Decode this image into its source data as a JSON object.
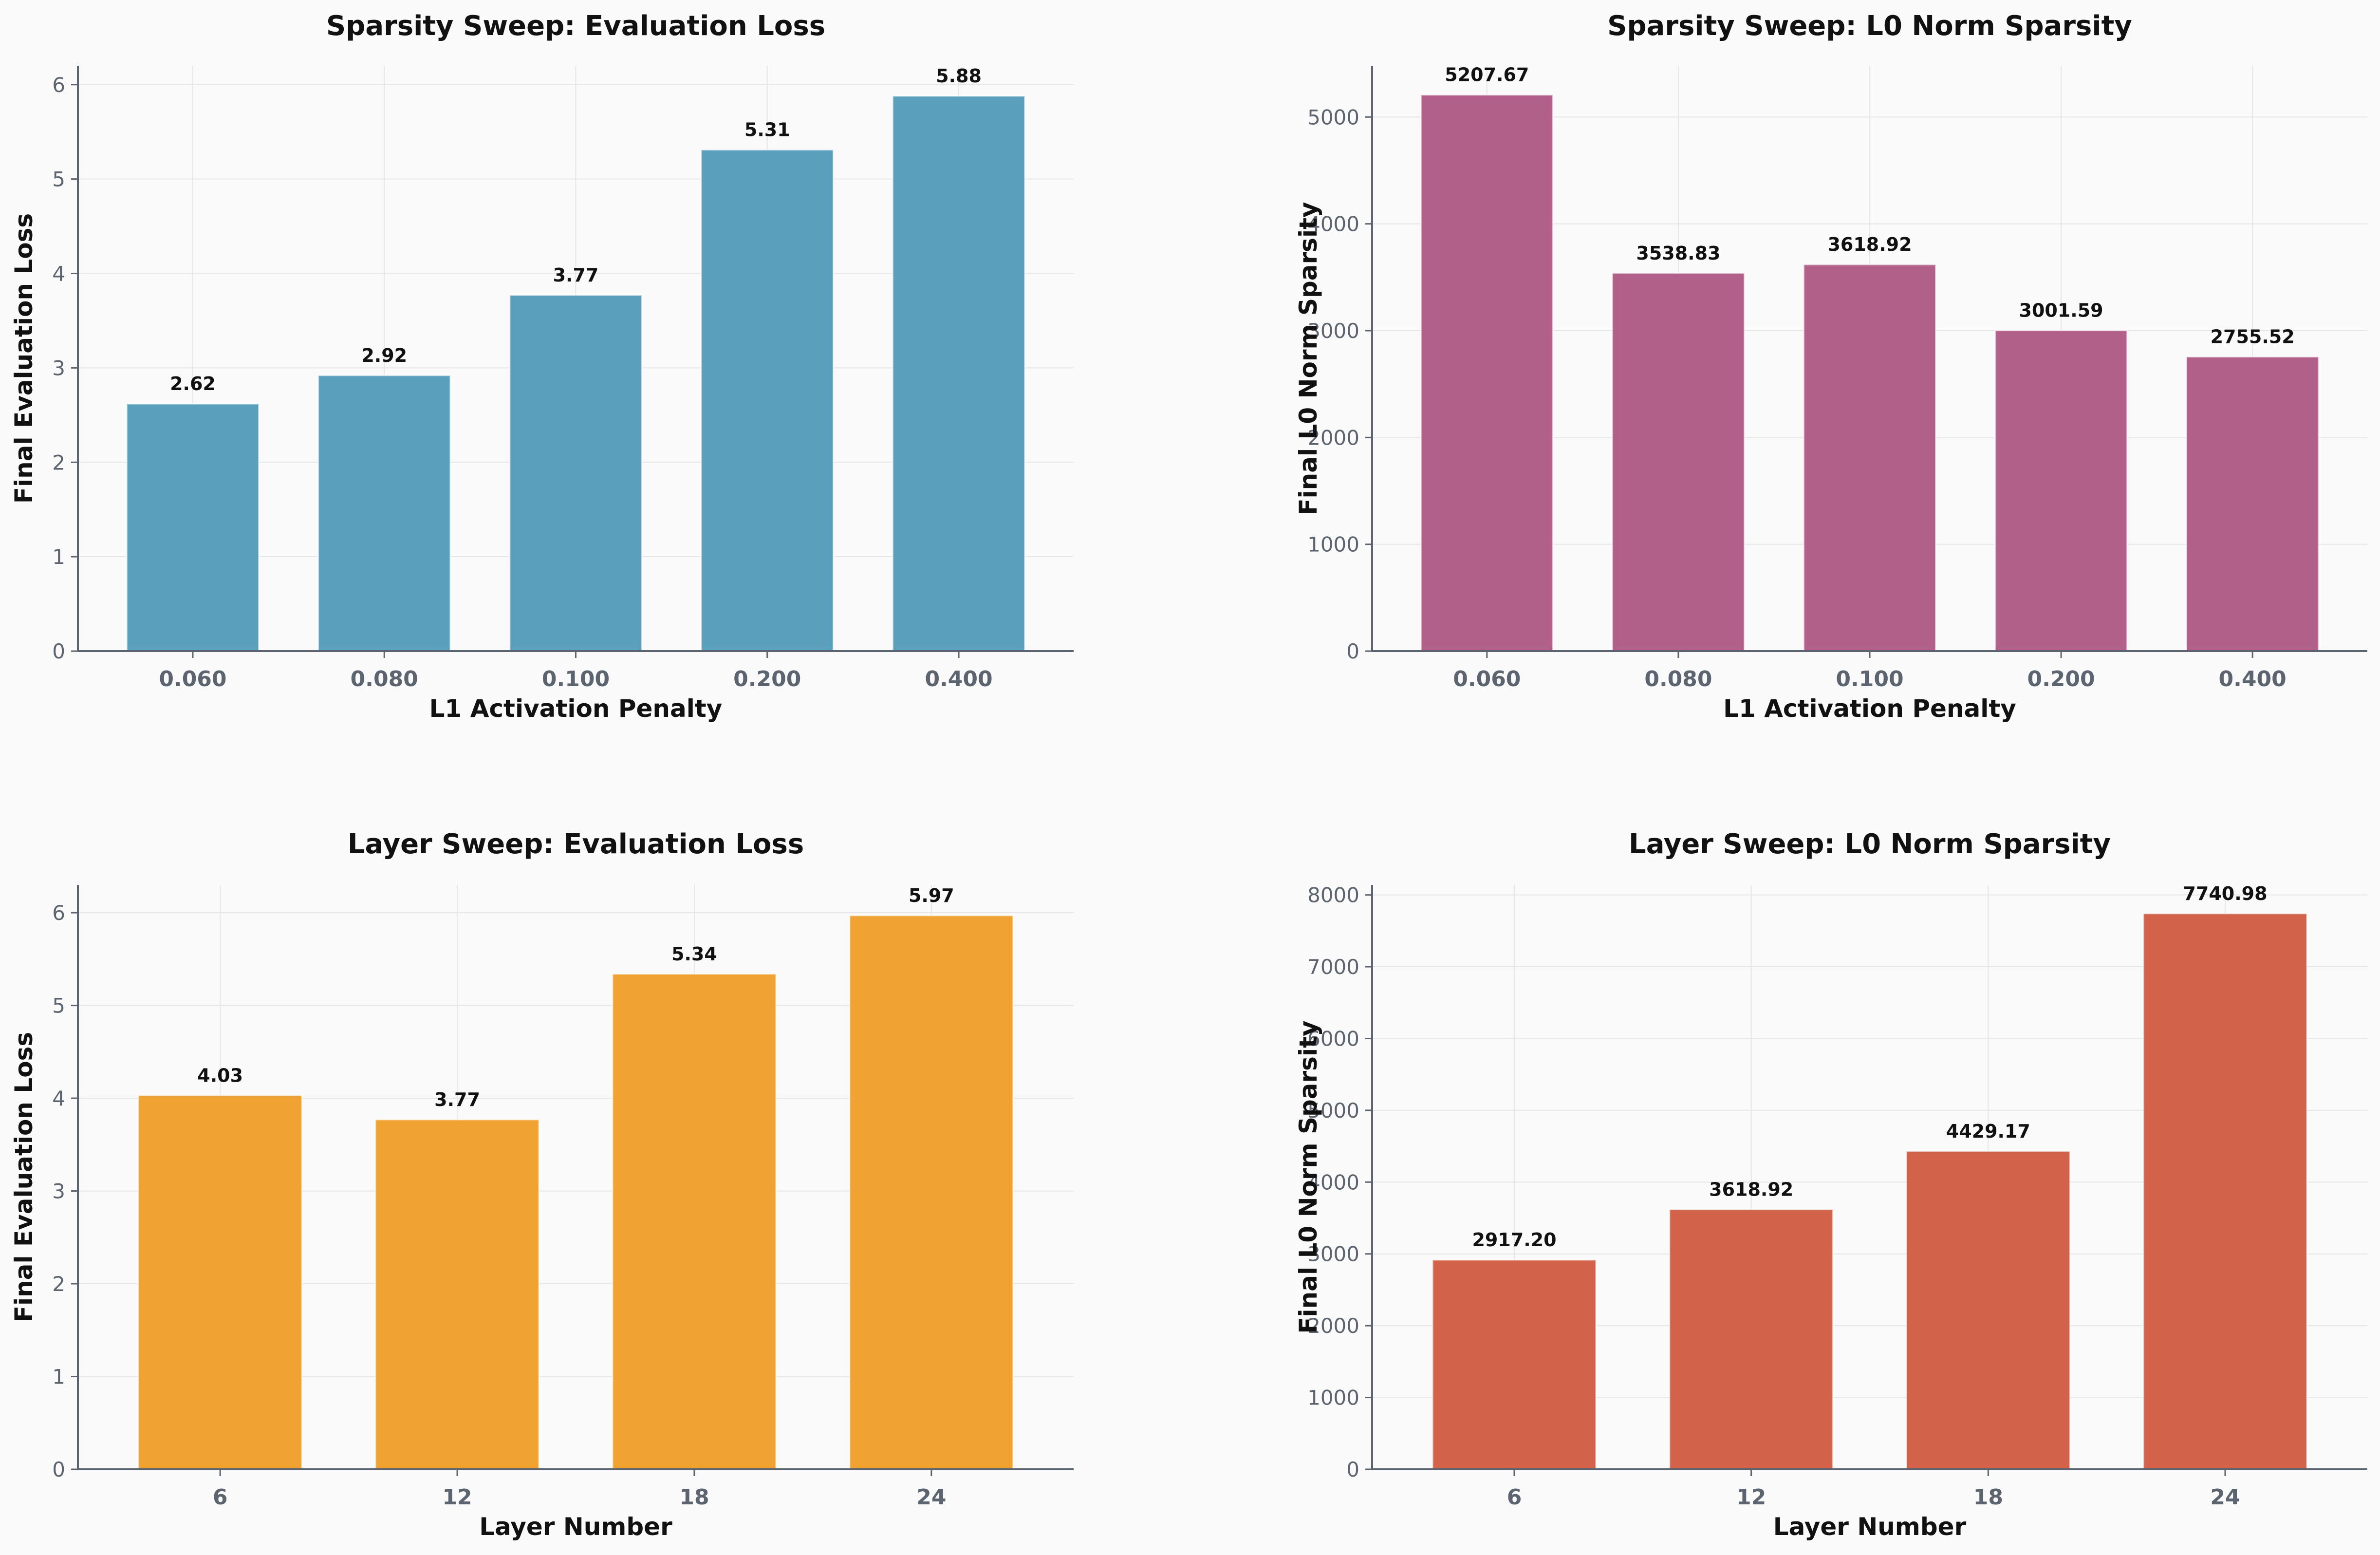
{
  "chart_data": [
    {
      "type": "bar",
      "title": "Sparsity Sweep: Evaluation Loss",
      "xlabel": "L1 Activation Penalty",
      "ylabel": "Final Evaluation Loss",
      "categories": [
        "0.060",
        "0.080",
        "0.100",
        "0.200",
        "0.400"
      ],
      "values": [
        2.62,
        2.92,
        3.77,
        5.31,
        5.88
      ],
      "value_labels": [
        "2.62",
        "2.92",
        "3.77",
        "5.31",
        "5.88"
      ],
      "ylim": [
        0,
        6.2
      ],
      "yticks": [
        0,
        1,
        2,
        3,
        4,
        5,
        6
      ],
      "color": "#5a9fbc",
      "grid": true
    },
    {
      "type": "bar",
      "title": "Sparsity Sweep: L0 Norm Sparsity",
      "xlabel": "L1 Activation Penalty",
      "ylabel": "Final L0 Norm Sparsity",
      "categories": [
        "0.060",
        "0.080",
        "0.100",
        "0.200",
        "0.400"
      ],
      "values": [
        5207.67,
        3538.83,
        3618.92,
        3001.59,
        2755.52
      ],
      "value_labels": [
        "5207.67",
        "3538.83",
        "3618.92",
        "3001.59",
        "2755.52"
      ],
      "ylim": [
        0,
        5480
      ],
      "yticks": [
        0,
        1000,
        2000,
        3000,
        4000,
        5000
      ],
      "color": "#b1608a",
      "grid": true
    },
    {
      "type": "bar",
      "title": "Layer Sweep: Evaluation Loss",
      "xlabel": "Layer Number",
      "ylabel": "Final Evaluation Loss",
      "categories": [
        "6",
        "12",
        "18",
        "24"
      ],
      "values": [
        4.03,
        3.77,
        5.34,
        5.97
      ],
      "value_labels": [
        "4.03",
        "3.77",
        "5.34",
        "5.97"
      ],
      "ylim": [
        0,
        6.3
      ],
      "yticks": [
        0,
        1,
        2,
        3,
        4,
        5,
        6
      ],
      "color": "#f0a332",
      "grid": true
    },
    {
      "type": "bar",
      "title": "Layer Sweep: L0 Norm Sparsity",
      "xlabel": "Layer Number",
      "ylabel": "Final L0 Norm Sparsity",
      "categories": [
        "6",
        "12",
        "18",
        "24"
      ],
      "values": [
        2917.2,
        3618.92,
        4429.17,
        7740.98
      ],
      "value_labels": [
        "2917.20",
        "3618.92",
        "4429.17",
        "7740.98"
      ],
      "ylim": [
        0,
        8140
      ],
      "yticks": [
        0,
        1000,
        2000,
        3000,
        4000,
        5000,
        6000,
        7000,
        8000
      ],
      "color": "#d2634a",
      "grid": true
    }
  ]
}
